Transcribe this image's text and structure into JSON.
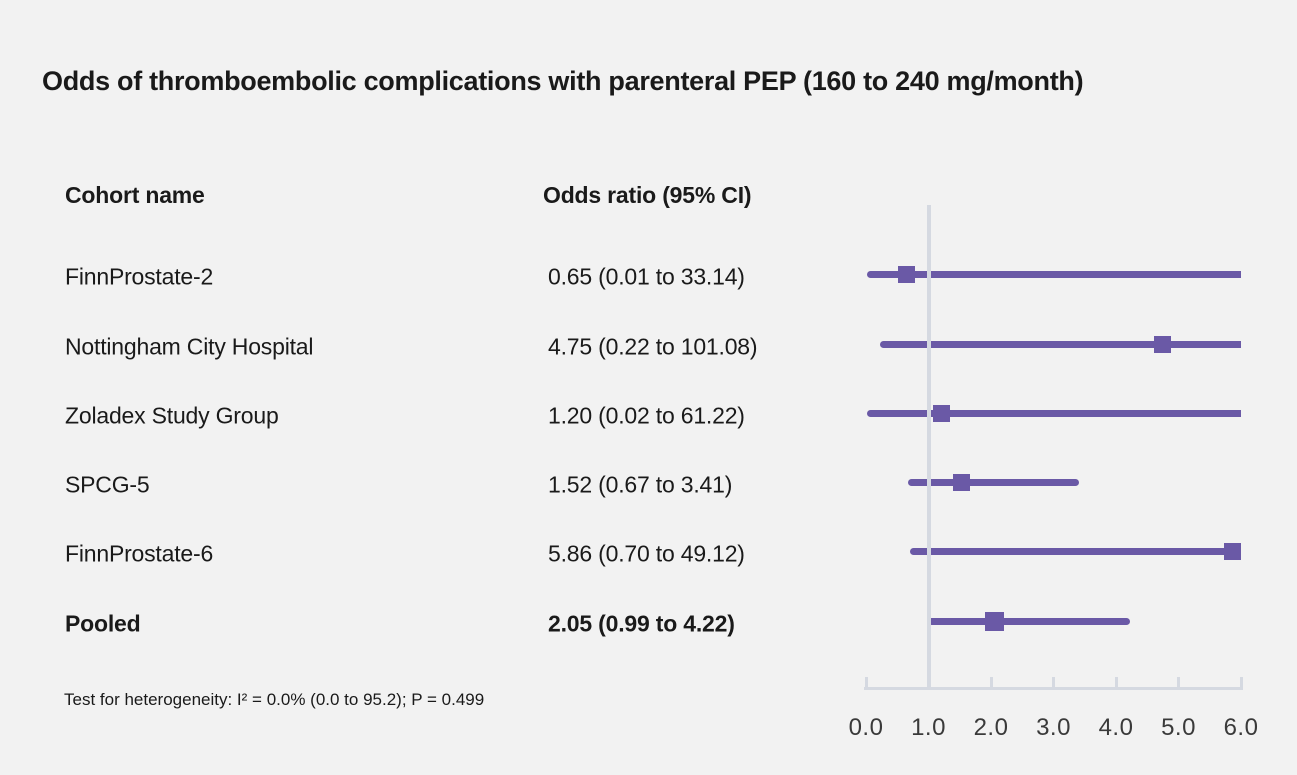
{
  "chart_data": {
    "type": "scatter",
    "subtype": "forest_plot",
    "title": "Odds of thromboembolic complications with parenteral PEP (160 to 240 mg/month)",
    "columns": [
      "Cohort name",
      "Odds ratio (95% CI)"
    ],
    "rows": [
      {
        "cohort": "FinnProstate-2",
        "or_label": "0.65 (0.01 to 33.14)",
        "or": 0.65,
        "ci_low": 0.01,
        "ci_high": 33.14,
        "pooled": false
      },
      {
        "cohort": "Nottingham City Hospital",
        "or_label": "4.75 (0.22 to 101.08)",
        "or": 4.75,
        "ci_low": 0.22,
        "ci_high": 101.08,
        "pooled": false
      },
      {
        "cohort": "Zoladex Study Group",
        "or_label": "1.20 (0.02 to 61.22)",
        "or": 1.2,
        "ci_low": 0.02,
        "ci_high": 61.22,
        "pooled": false
      },
      {
        "cohort": "SPCG-5",
        "or_label": "1.52 (0.67 to 3.41)",
        "or": 1.52,
        "ci_low": 0.67,
        "ci_high": 3.41,
        "pooled": false
      },
      {
        "cohort": "FinnProstate-6",
        "or_label": "5.86 (0.70 to 49.12)",
        "or": 5.86,
        "ci_low": 0.7,
        "ci_high": 49.12,
        "pooled": false
      },
      {
        "cohort": "Pooled",
        "or_label": "2.05 (0.99 to 4.22)",
        "or": 2.05,
        "ci_low": 0.99,
        "ci_high": 4.22,
        "pooled": true
      }
    ],
    "x_axis": {
      "ticks": [
        "0.0",
        "1.0",
        "2.0",
        "3.0",
        "4.0",
        "5.0",
        "6.0"
      ],
      "min": 0,
      "max": 6,
      "reference_line": 1.0
    },
    "footnote": "Test for heterogeneity: I² = 0.0% (0.0 to 95.2); P = 0.499",
    "colors": {
      "marker": "#6a59a6",
      "axis_line": "#d5d9e1",
      "background": "#f2f2f2",
      "text": "#1a1a1a"
    }
  }
}
